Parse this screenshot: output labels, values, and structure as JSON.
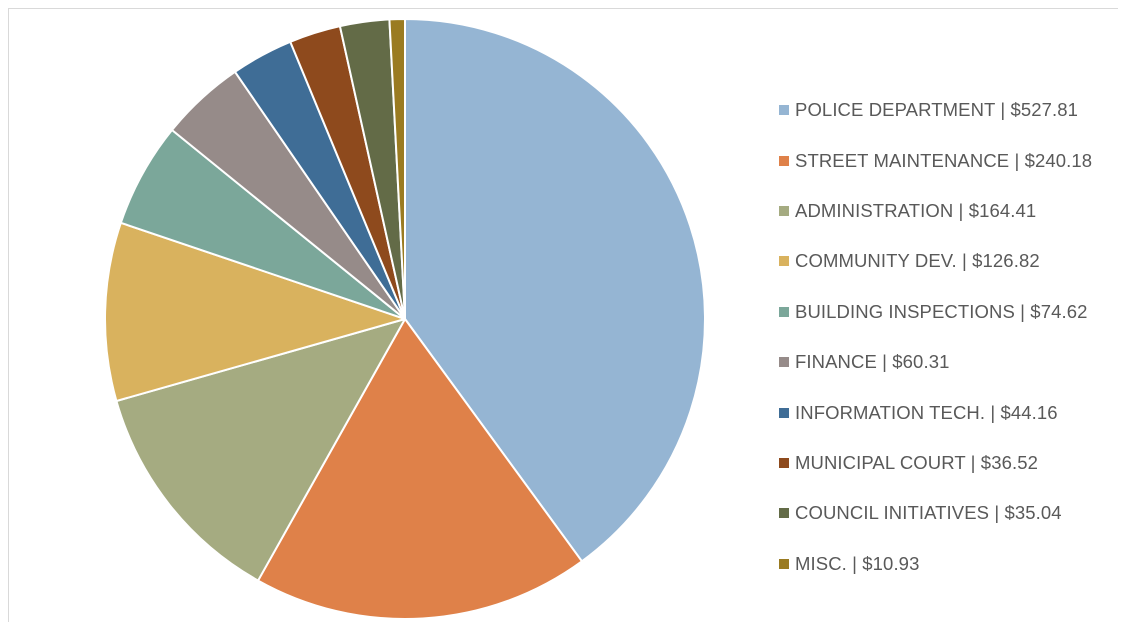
{
  "chart_data": {
    "type": "pie",
    "title": "",
    "categories": [
      "POLICE DEPARTMENT",
      "STREET MAINTENANCE",
      "ADMINISTRATION",
      "COMMUNITY DEV.",
      "BUILDING INSPECTIONS",
      "FINANCE",
      "INFORMATION TECH.",
      "MUNICIPAL COURT",
      "COUNCIL INITIATIVES",
      "MISC."
    ],
    "values": [
      527.81,
      240.18,
      164.41,
      126.82,
      74.62,
      60.31,
      44.16,
      36.52,
      35.04,
      10.93
    ],
    "colors": [
      "#95b5d3",
      "#df8149",
      "#a5ab81",
      "#d9b25e",
      "#7ba79a",
      "#968b89",
      "#3f6d96",
      "#8e4a1d",
      "#636b47",
      "#9a7b21"
    ],
    "legend_position": "right",
    "legend_labels": [
      "POLICE DEPARTMENT  | $527.81",
      "STREET MAINTENANCE | $240.18",
      "ADMINISTRATION | $164.41",
      "COMMUNITY DEV. | $126.82",
      "BUILDING INSPECTIONS | $74.62",
      "FINANCE | $60.31",
      "INFORMATION TECH. | $44.16",
      "MUNICIPAL COURT | $36.52",
      "COUNCIL INITIATIVES | $35.04",
      "MISC. | $10.93"
    ],
    "start_angle": "12 o'clock",
    "direction": "clockwise",
    "slice_border_color": "#ffffff"
  }
}
